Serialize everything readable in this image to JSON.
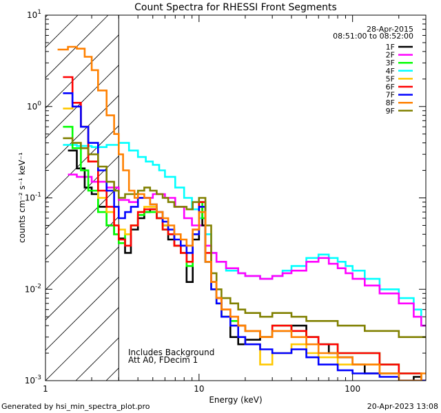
{
  "footer": {
    "generated_by": "Generated by hsi_min_spectra_plot.pro",
    "timestamp": "20-Apr-2023 13:08"
  },
  "chart_data": {
    "type": "line",
    "title": "Count Spectra for RHESSI Front Segments",
    "xlabel": "Energy (keV)",
    "ylabel": "counts cm⁻² s⁻¹ keV⁻¹",
    "x_scale": "log",
    "y_scale": "log",
    "xlim": [
      1,
      300
    ],
    "ylim": [
      0.001,
      10
    ],
    "x_ticks": [
      {
        "value": 1,
        "label": "1"
      },
      {
        "value": 10,
        "label": "10"
      },
      {
        "value": 100,
        "label": "100"
      }
    ],
    "y_ticks": [
      {
        "value": 0.001,
        "base": "10",
        "exp": "-3"
      },
      {
        "value": 0.01,
        "base": "10",
        "exp": "-2"
      },
      {
        "value": 0.1,
        "base": "10",
        "exp": "-1"
      },
      {
        "value": 1,
        "base": "10",
        "exp": "0"
      },
      {
        "value": 10,
        "base": "10",
        "exp": "1"
      }
    ],
    "grid": false,
    "legend_position": "top-right",
    "header_date": "28-Apr-2015",
    "header_time_range": "08:51:00 to 08:52:00",
    "shaded_region": {
      "x_min": 1,
      "x_max": 3,
      "style": "diagonal-hatch"
    },
    "annotations": [
      "Includes Background",
      "Att A0, FDecim 1"
    ],
    "series": [
      {
        "name": "1F",
        "color": "#000000",
        "x": [
          1.4,
          1.6,
          1.8,
          2,
          2.2,
          2.5,
          2.8,
          3,
          3.3,
          3.6,
          4,
          4.4,
          4.8,
          5.3,
          5.8,
          6.3,
          6.9,
          7.6,
          8.3,
          9.1,
          10,
          10.5,
          11,
          12,
          13,
          14,
          16,
          18,
          20,
          25,
          30,
          40,
          50,
          60,
          70,
          80,
          100,
          120,
          150,
          200,
          250,
          280
        ],
        "y": [
          0.33,
          0.21,
          0.13,
          0.11,
          0.08,
          0.05,
          0.04,
          0.036,
          0.025,
          0.045,
          0.06,
          0.07,
          0.075,
          0.06,
          0.05,
          0.035,
          0.03,
          0.025,
          0.012,
          0.035,
          0.08,
          0.05,
          0.02,
          0.012,
          0.008,
          0.005,
          0.003,
          0.0025,
          0.0028,
          0.003,
          0.0035,
          0.004,
          0.003,
          0.0025,
          0.002,
          0.0018,
          0.0015,
          0.0012,
          0.0012,
          0.001,
          0.0011,
          0.001
        ]
      },
      {
        "name": "2F",
        "color": "#ff00ff",
        "x": [
          1.4,
          1.6,
          2,
          2.5,
          3,
          3.5,
          4,
          5,
          6,
          7,
          8,
          9,
          10,
          11,
          12,
          13,
          15,
          18,
          20,
          25,
          30,
          35,
          40,
          50,
          60,
          70,
          80,
          90,
          100,
          120,
          150,
          200,
          250,
          280
        ],
        "y": [
          0.18,
          0.17,
          0.15,
          0.13,
          0.095,
          0.09,
          0.1,
          0.11,
          0.1,
          0.08,
          0.06,
          0.05,
          0.05,
          0.03,
          0.025,
          0.02,
          0.017,
          0.015,
          0.014,
          0.013,
          0.014,
          0.015,
          0.016,
          0.02,
          0.022,
          0.019,
          0.017,
          0.015,
          0.013,
          0.011,
          0.009,
          0.007,
          0.005,
          0.004
        ]
      },
      {
        "name": "3F",
        "color": "#00ff00",
        "x": [
          1.3,
          1.5,
          1.7,
          1.9,
          2.2,
          2.5,
          2.8,
          3,
          3.3,
          3.6,
          4,
          4.4,
          4.8,
          5.3,
          5.8,
          6.3,
          6.9,
          7.6,
          8.3,
          9.1,
          10,
          10.5,
          11,
          12,
          13,
          14,
          16,
          18,
          20,
          25,
          30,
          40,
          50,
          60,
          80,
          100,
          150,
          200,
          280
        ],
        "y": [
          0.6,
          0.35,
          0.2,
          0.12,
          0.07,
          0.05,
          0.04,
          0.032,
          0.04,
          0.05,
          0.065,
          0.07,
          0.07,
          0.06,
          0.045,
          0.04,
          0.03,
          0.025,
          0.018,
          0.04,
          0.09,
          0.06,
          0.02,
          0.01,
          0.007,
          0.005,
          0.0045,
          0.004,
          0.0035,
          0.003,
          0.004,
          0.0035,
          0.003,
          0.0025,
          0.002,
          0.002,
          0.0015,
          0.0012,
          0.001
        ]
      },
      {
        "name": "4F",
        "color": "#00ffff",
        "x": [
          1.3,
          1.6,
          2,
          2.5,
          3,
          3.5,
          4,
          4.5,
          5,
          5.5,
          6,
          7,
          8,
          9,
          10,
          11,
          12,
          13,
          15,
          18,
          20,
          25,
          30,
          35,
          40,
          50,
          60,
          70,
          80,
          90,
          100,
          120,
          150,
          200,
          250,
          280
        ],
        "y": [
          0.38,
          0.37,
          0.36,
          0.38,
          0.4,
          0.33,
          0.28,
          0.25,
          0.23,
          0.2,
          0.17,
          0.13,
          0.1,
          0.075,
          0.06,
          0.04,
          0.025,
          0.02,
          0.016,
          0.015,
          0.014,
          0.013,
          0.014,
          0.016,
          0.018,
          0.022,
          0.024,
          0.022,
          0.02,
          0.018,
          0.016,
          0.013,
          0.01,
          0.008,
          0.006,
          0.004
        ]
      },
      {
        "name": "5F",
        "color": "#ffc800",
        "x": [
          1.3,
          1.5,
          1.7,
          1.9,
          2.2,
          2.5,
          2.8,
          3,
          3.3,
          3.6,
          4,
          4.4,
          4.8,
          5.3,
          5.8,
          6.3,
          6.9,
          7.6,
          8.3,
          9.1,
          10,
          11,
          12,
          13,
          14,
          16,
          18,
          20,
          25,
          30,
          40,
          50,
          60,
          80,
          100,
          150,
          200,
          280
        ],
        "y": [
          0.95,
          1.0,
          0.6,
          0.25,
          0.1,
          0.07,
          0.05,
          0.045,
          0.04,
          0.05,
          0.07,
          0.08,
          0.08,
          0.07,
          0.05,
          0.04,
          0.03,
          0.025,
          0.02,
          0.04,
          0.08,
          0.02,
          0.01,
          0.007,
          0.005,
          0.004,
          0.003,
          0.0025,
          0.0015,
          0.002,
          0.0025,
          0.002,
          0.0018,
          0.0015,
          0.0015,
          0.0012,
          0.001,
          0.001
        ]
      },
      {
        "name": "6F",
        "color": "#ff0000",
        "x": [
          1.3,
          1.5,
          1.7,
          1.9,
          2.2,
          2.5,
          2.8,
          3,
          3.3,
          3.6,
          4,
          4.4,
          4.8,
          5.3,
          5.8,
          6.3,
          6.9,
          7.6,
          8.3,
          9.1,
          10,
          11,
          12,
          13,
          14,
          16,
          18,
          20,
          25,
          30,
          40,
          50,
          60,
          80,
          100,
          150,
          200,
          280
        ],
        "y": [
          2.1,
          1.1,
          0.6,
          0.25,
          0.12,
          0.08,
          0.05,
          0.035,
          0.03,
          0.05,
          0.07,
          0.075,
          0.075,
          0.06,
          0.045,
          0.04,
          0.03,
          0.025,
          0.02,
          0.045,
          0.09,
          0.025,
          0.012,
          0.008,
          0.006,
          0.005,
          0.004,
          0.0035,
          0.003,
          0.004,
          0.0035,
          0.003,
          0.0025,
          0.002,
          0.002,
          0.0015,
          0.0012,
          0.001
        ]
      },
      {
        "name": "7F",
        "color": "#0000ff",
        "x": [
          1.3,
          1.5,
          1.7,
          1.9,
          2.2,
          2.5,
          2.8,
          3,
          3.3,
          3.6,
          4,
          4.4,
          4.8,
          5.3,
          5.8,
          6.3,
          6.9,
          7.6,
          8.3,
          9.1,
          10,
          11,
          12,
          13,
          14,
          16,
          18,
          20,
          25,
          30,
          40,
          50,
          60,
          80,
          100,
          150,
          200,
          280
        ],
        "y": [
          1.4,
          1.0,
          0.6,
          0.4,
          0.2,
          0.12,
          0.08,
          0.06,
          0.07,
          0.08,
          0.1,
          0.1,
          0.085,
          0.07,
          0.055,
          0.045,
          0.035,
          0.03,
          0.025,
          0.04,
          0.08,
          0.02,
          0.01,
          0.007,
          0.005,
          0.004,
          0.003,
          0.0025,
          0.0022,
          0.002,
          0.0022,
          0.0018,
          0.0015,
          0.0013,
          0.0012,
          0.0011,
          0.001,
          0.001
        ]
      },
      {
        "name": "8F",
        "color": "#ff8000",
        "x": [
          1.2,
          1.4,
          1.6,
          1.8,
          2,
          2.2,
          2.5,
          2.8,
          3,
          3.2,
          3.5,
          3.8,
          4,
          4.4,
          4.8,
          5.3,
          5.8,
          6.3,
          6.9,
          7.6,
          8.3,
          9.1,
          10,
          11,
          12,
          13,
          14,
          16,
          18,
          20,
          25,
          30,
          40,
          50,
          60,
          80,
          100,
          150,
          200,
          280
        ],
        "y": [
          4.2,
          4.5,
          4.3,
          3.5,
          2.5,
          1.5,
          0.8,
          0.5,
          0.3,
          0.2,
          0.12,
          0.1,
          0.11,
          0.1,
          0.085,
          0.07,
          0.06,
          0.05,
          0.04,
          0.035,
          0.03,
          0.045,
          0.07,
          0.02,
          0.012,
          0.008,
          0.006,
          0.005,
          0.004,
          0.0035,
          0.003,
          0.0035,
          0.003,
          0.0025,
          0.002,
          0.0018,
          0.0015,
          0.0012,
          0.001,
          0.0012
        ]
      },
      {
        "name": "9F",
        "color": "#808000",
        "x": [
          1.3,
          1.5,
          1.7,
          1.9,
          2.2,
          2.5,
          2.8,
          3,
          3.3,
          3.6,
          4,
          4.4,
          4.8,
          5.3,
          5.8,
          6.3,
          6.9,
          7.6,
          8.3,
          9.1,
          10,
          11,
          12,
          13,
          14,
          16,
          18,
          20,
          25,
          30,
          40,
          50,
          60,
          80,
          100,
          120,
          150,
          200,
          280
        ],
        "y": [
          0.45,
          0.4,
          0.35,
          0.3,
          0.22,
          0.15,
          0.12,
          0.1,
          0.11,
          0.11,
          0.12,
          0.13,
          0.12,
          0.11,
          0.1,
          0.09,
          0.08,
          0.08,
          0.075,
          0.09,
          0.1,
          0.05,
          0.015,
          0.01,
          0.008,
          0.007,
          0.006,
          0.0055,
          0.005,
          0.0055,
          0.005,
          0.0045,
          0.0045,
          0.004,
          0.004,
          0.0035,
          0.0035,
          0.003,
          0.003
        ]
      }
    ]
  }
}
